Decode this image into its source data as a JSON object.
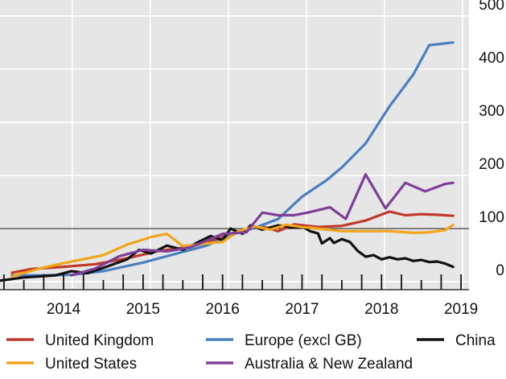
{
  "chart_data": {
    "type": "line",
    "title": "",
    "xlabel": "",
    "ylabel": "",
    "x_ticks": [
      "2014",
      "2015",
      "2016",
      "2017",
      "2018",
      "2019"
    ],
    "xlim": [
      2013.7,
      2019.6
    ],
    "y_ticks": [
      0,
      100,
      200,
      300,
      400,
      500
    ],
    "ylim": [
      -15,
      530
    ],
    "reference_line": 100,
    "y_axis_position": "right",
    "grid": true,
    "legend_position": "bottom",
    "series": [
      {
        "name": "United Kingdom",
        "color": "#c0392b",
        "x": [
          2013.85,
          2014.1,
          2014.5,
          2014.9,
          2015.3,
          2015.7,
          2016.0,
          2016.3,
          2016.6,
          2016.8,
          2017.0,
          2017.2,
          2017.4,
          2017.7,
          2018.0,
          2018.3,
          2018.6,
          2018.8,
          2019.0,
          2019.2,
          2019.4
        ],
        "y": [
          17,
          24,
          28,
          33,
          44,
          58,
          64,
          73,
          90,
          98,
          104,
          95,
          108,
          103,
          105,
          115,
          132,
          125,
          127,
          126,
          124
        ]
      },
      {
        "name": "Europe (excl GB)",
        "color": "#4a7fc1",
        "x": [
          2013.85,
          2014.2,
          2014.6,
          2015.0,
          2015.5,
          2015.9,
          2016.3,
          2016.6,
          2016.9,
          2017.2,
          2017.5,
          2017.8,
          2018.0,
          2018.3,
          2018.6,
          2018.9,
          2019.1,
          2019.4
        ],
        "y": [
          12,
          12,
          13,
          20,
          36,
          52,
          68,
          88,
          101,
          118,
          160,
          190,
          215,
          260,
          330,
          390,
          445,
          450
        ]
      },
      {
        "name": "China",
        "color": "#111111",
        "x": [
          2013.7,
          2014.0,
          2014.4,
          2014.6,
          2014.8,
          2015.0,
          2015.3,
          2015.45,
          2015.6,
          2015.8,
          2016.0,
          2016.2,
          2016.35,
          2016.5,
          2016.6,
          2016.75,
          2016.85,
          2017.0,
          2017.2,
          2017.4,
          2017.5,
          2017.6,
          2017.7,
          2017.75,
          2017.85,
          2017.9,
          2018.0,
          2018.1,
          2018.2,
          2018.3,
          2018.4,
          2018.5,
          2018.6,
          2018.7,
          2018.8,
          2018.9,
          2019.0,
          2019.1,
          2019.2,
          2019.3,
          2019.4
        ],
        "y": [
          2,
          8,
          12,
          20,
          16,
          26,
          42,
          60,
          53,
          68,
          60,
          75,
          86,
          78,
          100,
          90,
          106,
          98,
          106,
          102,
          104,
          95,
          91,
          72,
          82,
          73,
          80,
          75,
          58,
          47,
          50,
          42,
          46,
          42,
          44,
          39,
          41,
          37,
          38,
          34,
          28
        ]
      },
      {
        "name": "United States",
        "color": "#f2a51a",
        "x": [
          2013.85,
          2014.2,
          2014.6,
          2015.0,
          2015.3,
          2015.6,
          2015.8,
          2016.0,
          2016.3,
          2016.5,
          2016.7,
          2016.9,
          2017.1,
          2017.3,
          2017.5,
          2017.7,
          2018.0,
          2018.3,
          2018.6,
          2018.9,
          2019.1,
          2019.3,
          2019.4
        ],
        "y": [
          10,
          25,
          38,
          50,
          70,
          84,
          90,
          67,
          72,
          75,
          95,
          104,
          98,
          107,
          103,
          100,
          95,
          95,
          95,
          92,
          93,
          97,
          107
        ]
      },
      {
        "name": "Australia & New Zealand",
        "color": "#7f3f98",
        "x": [
          2014.6,
          2014.9,
          2015.2,
          2015.5,
          2015.8,
          2016.1,
          2016.5,
          2016.8,
          2017.0,
          2017.2,
          2017.4,
          2017.6,
          2017.85,
          2018.05,
          2018.3,
          2018.55,
          2018.8,
          2019.05,
          2019.3,
          2019.4
        ],
        "y": [
          12,
          25,
          48,
          60,
          57,
          65,
          90,
          93,
          130,
          125,
          125,
          131,
          140,
          118,
          202,
          138,
          186,
          170,
          184,
          186
        ]
      }
    ]
  }
}
